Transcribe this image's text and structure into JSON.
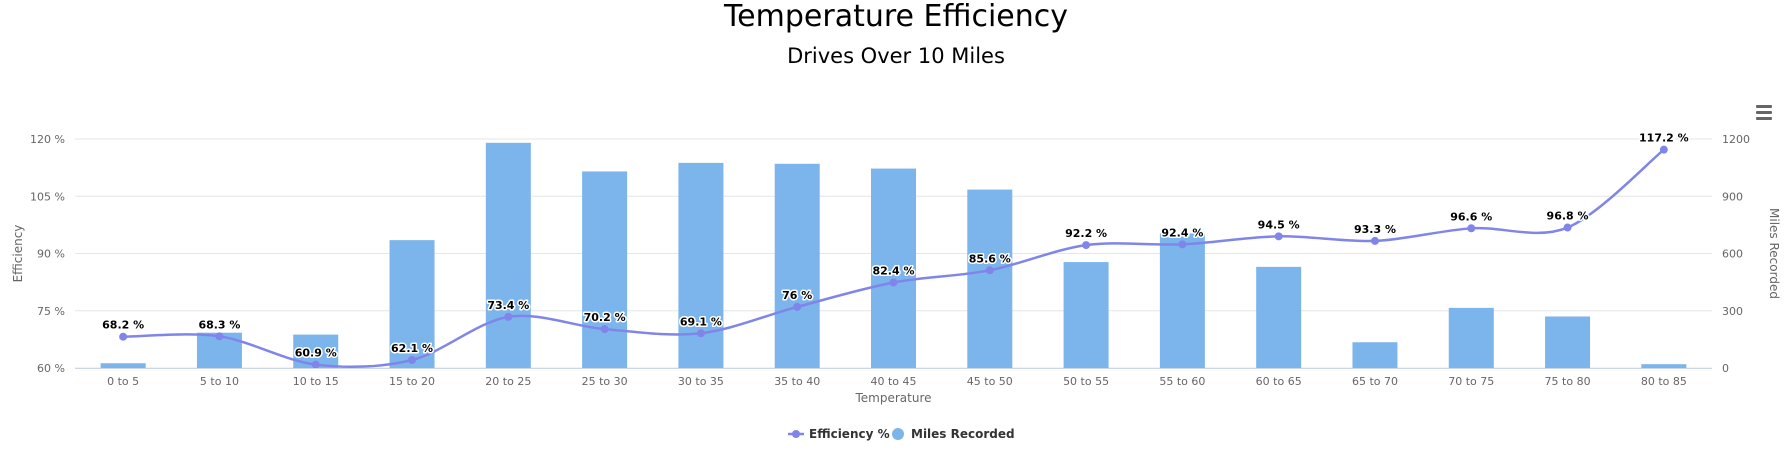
{
  "chart_data": {
    "type": "bar+line",
    "title": "Temperature Efficiency",
    "subtitle": "Drives Over 10 Miles",
    "xlabel": "Temperature",
    "ylabel_left": "Efficiency",
    "ylabel_right": "Miles Recorded",
    "categories": [
      "0 to 5",
      "5 to 10",
      "10 to 15",
      "15 to 20",
      "20 to 25",
      "25 to 30",
      "30 to 35",
      "35 to 40",
      "40 to 45",
      "45 to 50",
      "50 to 55",
      "55 to 60",
      "60 to 65",
      "65 to 70",
      "70 to 75",
      "75 to 80",
      "80 to 85"
    ],
    "y_left": {
      "min": 60,
      "max": 120,
      "ticks": [
        60,
        75,
        90,
        105,
        120
      ],
      "tick_labels": [
        "60 %",
        "75 %",
        "90 %",
        "105 %",
        "120 %"
      ]
    },
    "y_right": {
      "min": 0,
      "max": 1200,
      "ticks": [
        0,
        300,
        600,
        900,
        1200
      ],
      "tick_labels": [
        "0",
        "300",
        "600",
        "900",
        "1200"
      ]
    },
    "series": [
      {
        "name": "Miles Recorded",
        "type": "bar",
        "axis": "right",
        "color": "#7cb5ec",
        "values": [
          25,
          185,
          175,
          670,
          1180,
          1030,
          1075,
          1070,
          1045,
          935,
          555,
          705,
          530,
          135,
          315,
          270,
          20
        ]
      },
      {
        "name": "Efficiency %",
        "type": "spline",
        "axis": "left",
        "color": "#8085e9",
        "values": [
          68.2,
          68.3,
          60.9,
          62.1,
          73.4,
          70.2,
          69.1,
          76,
          82.4,
          85.6,
          92.2,
          92.4,
          94.5,
          93.3,
          96.6,
          96.8,
          117.2
        ],
        "labels": [
          "68.2 %",
          "68.3 %",
          "60.9 %",
          "62.1 %",
          "73.4 %",
          "70.2 %",
          "69.1 %",
          "76 %",
          "82.4 %",
          "85.6 %",
          "92.2 %",
          "92.4 %",
          "94.5 %",
          "93.3 %",
          "96.6 %",
          "96.8 %",
          "117.2 %"
        ]
      }
    ],
    "grid": true,
    "legend": "bottom-center",
    "legend_order": [
      "Efficiency %",
      "Miles Recorded"
    ]
  },
  "icons": {
    "menu": "hamburger-menu-icon"
  }
}
